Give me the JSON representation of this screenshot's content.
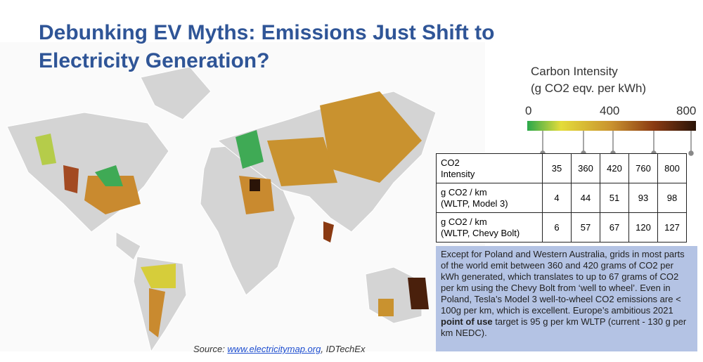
{
  "title": [
    "Debunking EV Myths: Emissions Just Shift to",
    "Electricity Generation?"
  ],
  "legend": {
    "title": [
      "Carbon Intensity",
      "(g CO2 eqv. per kWh)"
    ],
    "ticks": [
      0,
      400,
      800
    ]
  },
  "table": {
    "rows": [
      {
        "label": [
          "CO2",
          "Intensity"
        ],
        "values": [
          35,
          360,
          420,
          760,
          800
        ]
      },
      {
        "label": [
          "g CO2 / km",
          "(WLTP, Model 3)"
        ],
        "values": [
          4,
          44,
          51,
          93,
          98
        ]
      },
      {
        "label": [
          "g CO2 / km",
          "(WLTP, Chevy Bolt)"
        ],
        "values": [
          6,
          57,
          67,
          120,
          127
        ]
      }
    ]
  },
  "note": {
    "before": "Except for Poland and Western Australia, grids in most parts of the world emit between 360 and 420 grams of CO2 per kWh generated, which translates to up to 67 grams of CO2 per km using the Chevy Bolt  from ‘well to wheel’. Even in Poland, Tesla’s Model 3 well-to-wheel CO2 emissions are < 100g per km, which is excellent. Europe’s ambitious 2021 ",
    "bold": "point of use",
    "after": " target is 95 g per km WLTP (current - 130 g per km NEDC)."
  },
  "source": {
    "prefix": "Source: ",
    "link": "www.electricitymap.org",
    "suffix": ", IDTechEx"
  }
}
